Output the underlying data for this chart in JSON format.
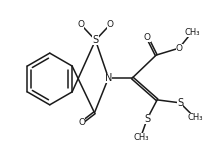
{
  "bg_color": "#ffffff",
  "line_color": "#1a1a1a",
  "line_width": 1.1,
  "font_size": 6.5,
  "figsize": [
    2.04,
    1.47
  ],
  "dpi": 100,
  "xlim": [
    0,
    204
  ],
  "ylim": [
    0,
    147
  ]
}
